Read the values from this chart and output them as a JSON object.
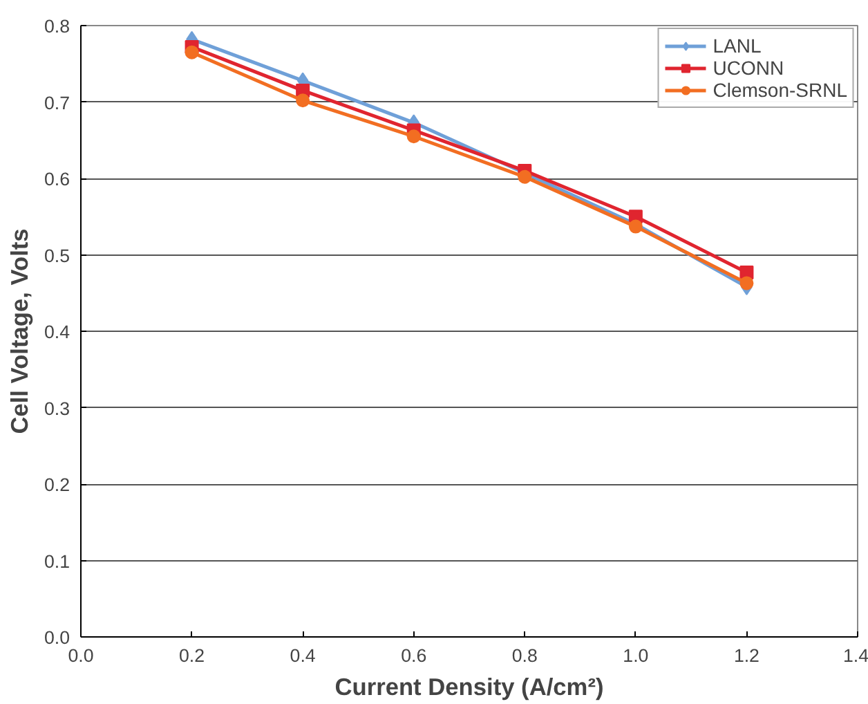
{
  "chart_data": {
    "type": "line",
    "xlabel": "Current Density (A/cm²)",
    "ylabel": "Cell Voltage, Volts",
    "x": [
      0.2,
      0.4,
      0.6,
      0.8,
      1.0,
      1.2
    ],
    "series": [
      {
        "name": "LANL",
        "color": "#6fa0d8",
        "marker": "diamond",
        "values": [
          0.782,
          0.728,
          0.673,
          0.607,
          0.54,
          0.458
        ]
      },
      {
        "name": "UCONN",
        "color": "#e0252f",
        "marker": "square",
        "values": [
          0.772,
          0.715,
          0.663,
          0.61,
          0.55,
          0.477
        ]
      },
      {
        "name": "Clemson-SRNL",
        "color": "#f26e22",
        "marker": "circle",
        "values": [
          0.765,
          0.702,
          0.655,
          0.602,
          0.537,
          0.463
        ]
      }
    ],
    "xlim": [
      0.0,
      1.4
    ],
    "xticks": [
      {
        "value": 0,
        "label": "0.0"
      },
      {
        "value": 0.2,
        "label": "0.2"
      },
      {
        "value": 0.4,
        "label": "0.4"
      },
      {
        "value": 0.6,
        "label": "0.6"
      },
      {
        "value": 0.8,
        "label": "0.8"
      },
      {
        "value": 1,
        "label": "1.0"
      },
      {
        "value": 1.2,
        "label": "1.2"
      },
      {
        "value": 1.4,
        "label": "1.4"
      }
    ],
    "ylim": [
      0.0,
      0.8
    ],
    "yticks": [
      {
        "value": 0,
        "label": "0.0"
      },
      {
        "value": 0.1,
        "label": "0.1"
      },
      {
        "value": 0.2,
        "label": "0.2"
      },
      {
        "value": 0.3,
        "label": "0.3"
      },
      {
        "value": 0.4,
        "label": "0.4"
      },
      {
        "value": 0.5,
        "label": "0.5"
      },
      {
        "value": 0.6,
        "label": "0.6"
      },
      {
        "value": 0.7,
        "label": "0.7"
      },
      {
        "value": 0.8,
        "label": "0.8"
      }
    ],
    "grid": "y",
    "legend": "top right",
    "line_style": "solid"
  }
}
